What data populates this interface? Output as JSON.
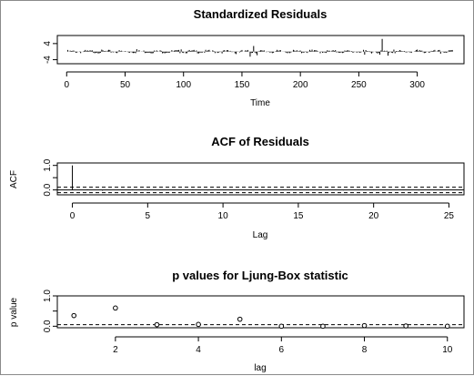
{
  "chart_data": [
    {
      "type": "line",
      "title": "Standardized Residuals",
      "xlabel": "Time",
      "ylabel": "",
      "xlim": [
        -8,
        340
      ],
      "ylim": [
        -6,
        8
      ],
      "x_ticks": [
        0,
        50,
        100,
        150,
        200,
        250,
        300
      ],
      "y_ticks": [
        -4,
        4
      ],
      "spikes": [
        {
          "x": 30,
          "y": 1.0
        },
        {
          "x": 60,
          "y": 1.2
        },
        {
          "x": 98,
          "y": 1.1
        },
        {
          "x": 145,
          "y": -1.2
        },
        {
          "x": 157,
          "y": -2.5
        },
        {
          "x": 160,
          "y": 2.8
        },
        {
          "x": 163,
          "y": -1.8
        },
        {
          "x": 210,
          "y": 1.0
        },
        {
          "x": 255,
          "y": -1.5
        },
        {
          "x": 268,
          "y": -1.5
        },
        {
          "x": 270,
          "y": 6.3
        },
        {
          "x": 275,
          "y": -2.0
        },
        {
          "x": 280,
          "y": 1.0
        },
        {
          "x": 300,
          "y": 1.0
        },
        {
          "x": 320,
          "y": -1.0
        }
      ],
      "n": 330
    },
    {
      "type": "bar",
      "title": "ACF of Residuals",
      "xlabel": "Lag",
      "ylabel": "ACF",
      "xlim": [
        -1,
        26
      ],
      "ylim": [
        -0.2,
        1.1
      ],
      "x_ticks": [
        0,
        5,
        10,
        15,
        20,
        25
      ],
      "y_ticks": [
        0.0,
        0.5,
        1.0
      ],
      "y_tick_labels": [
        "0.0",
        "",
        "1.0"
      ],
      "lags": [
        0,
        1,
        2,
        3,
        4,
        5,
        6,
        7,
        8,
        9,
        10,
        11,
        12,
        13,
        14,
        15,
        16,
        17,
        18,
        19,
        20,
        21,
        22,
        23,
        24,
        25
      ],
      "acf": [
        1.0,
        0.02,
        -0.03,
        0.01,
        0.02,
        -0.02,
        0.01,
        -0.01,
        0.02,
        -0.02,
        0.01,
        0.0,
        -0.02,
        0.01,
        0.02,
        -0.01,
        0.0,
        0.01,
        -0.02,
        0.01,
        0.02,
        -0.01,
        0.01,
        -0.02,
        0.01,
        0.0
      ],
      "conf_bounds": [
        0.11,
        -0.11
      ]
    },
    {
      "type": "scatter",
      "title": "p values for Ljung-Box statistic",
      "xlabel": "lag",
      "ylabel": "p value",
      "xlim": [
        0.6,
        10.4
      ],
      "ylim": [
        -0.05,
        1.0
      ],
      "x_ticks": [
        2,
        4,
        6,
        8,
        10
      ],
      "y_ticks": [
        0.0,
        0.5,
        1.0
      ],
      "y_tick_labels": [
        "0.0",
        "",
        "1.0"
      ],
      "x": [
        1,
        2,
        3,
        4,
        5,
        6,
        7,
        8,
        9,
        10
      ],
      "y": [
        0.35,
        0.6,
        0.05,
        0.06,
        0.23,
        0.0,
        0.0,
        0.02,
        0.01,
        0.0
      ],
      "reference_line": 0.05
    }
  ]
}
